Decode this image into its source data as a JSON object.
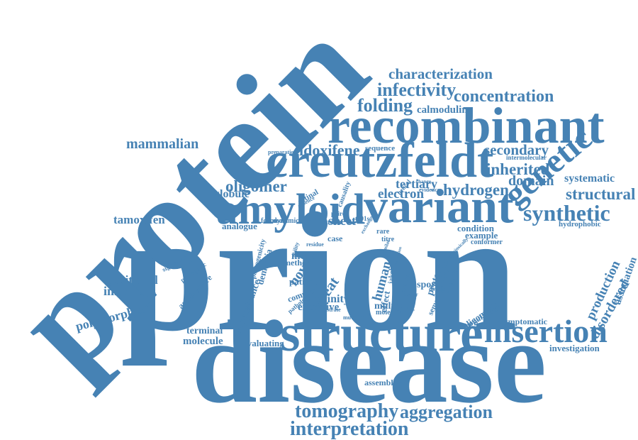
{
  "colors": {
    "word": "#4682b4",
    "background": "#ffffff"
  },
  "words": [
    "prion",
    "disease",
    "protein",
    "structure",
    "recombinant",
    "creutzfeldt",
    "variant",
    "amyloid",
    "insertion",
    "genetic",
    "tomography",
    "interpretation",
    "aggregation",
    "characterization",
    "concentration",
    "infectivity",
    "folding",
    "calmodulin",
    "mammalian",
    "idoxifene",
    "secondary",
    "inherited",
    "domain",
    "systematic",
    "structural",
    "synthetic",
    "hydrogen",
    "electron",
    "tertiary",
    "oligomer",
    "globule",
    "tamoxifen",
    "analogue",
    "sheet",
    "novel",
    "repeat",
    "human",
    "production",
    "association",
    "disordered",
    "positional",
    "infectious",
    "polymorphism",
    "pathogenicity",
    "dementia",
    "penetrance",
    "associated",
    "architecture",
    "pathogenic",
    "significant",
    "mouse",
    "method",
    "patient",
    "complex",
    "pathology",
    "affinity",
    "extensive",
    "multiple",
    "protective",
    "disorder",
    "sporadic",
    "formation",
    "semantic",
    "population",
    "oligomeric",
    "asymptomatic",
    "investigation",
    "terminal",
    "molecule",
    "evaluating",
    "assemblies",
    "condition",
    "example",
    "conformer",
    "hydrophobic",
    "preparation",
    "sequence",
    "intermolecular",
    "formed",
    "dynamic",
    "strain",
    "paired",
    "case",
    "rare",
    "titre",
    "jakob",
    "effect",
    "illustrate",
    "mutation",
    "molecular",
    "evidence",
    "change",
    "helical",
    "causality",
    "retinal",
    "absence",
    "t201s",
    "similar",
    "conclusion",
    "specific",
    "intrinsically",
    "double",
    "national",
    "further",
    "residue",
    "exchange",
    "ability"
  ]
}
